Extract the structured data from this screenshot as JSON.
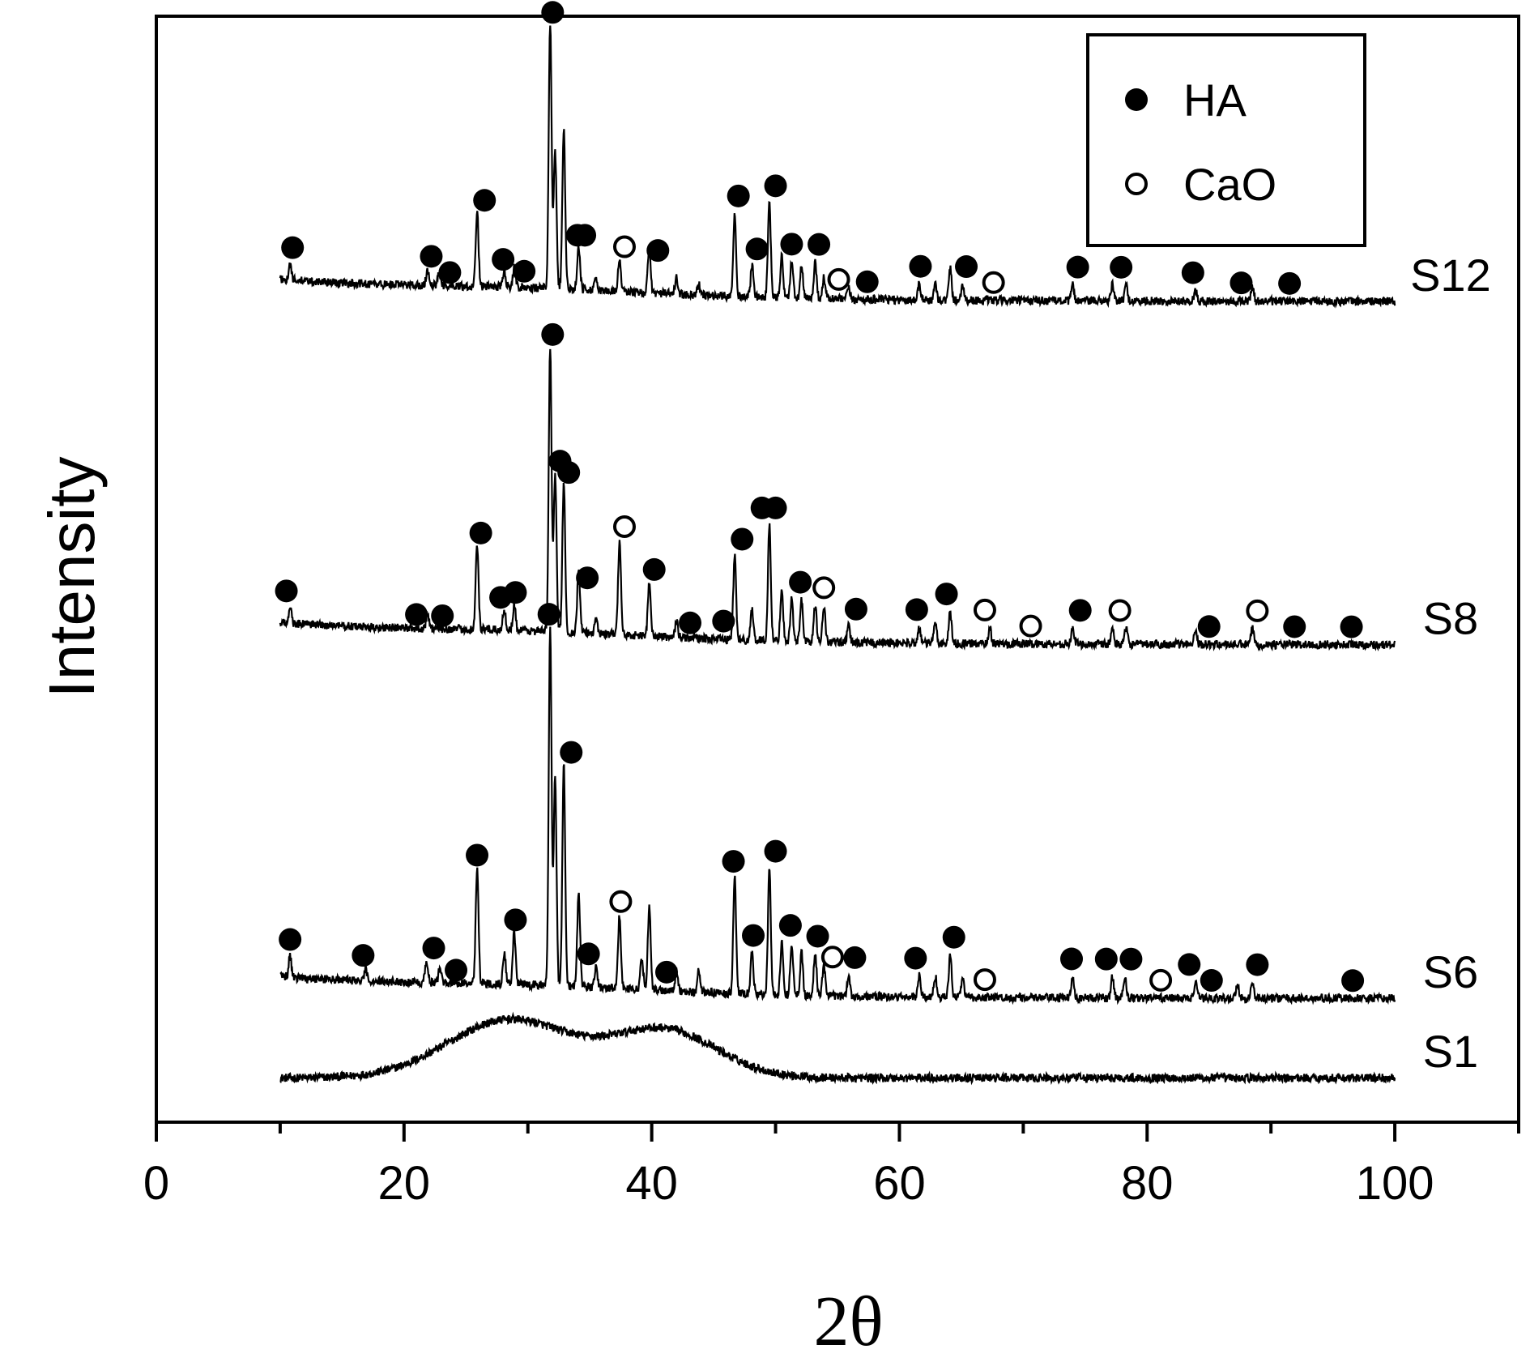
{
  "chart_data": {
    "type": "line",
    "xlabel": "2θ",
    "ylabel": "Intensity",
    "xlim": [
      0,
      110
    ],
    "xticks": [
      0,
      20,
      40,
      60,
      80,
      100
    ],
    "x_tick_labels": [
      "0",
      "20",
      "40",
      "60",
      "80",
      "100"
    ],
    "y_ticks_shown": false,
    "x_range_measured": [
      10,
      100
    ],
    "legend_position": "top-right",
    "legend": [
      {
        "label": "HA",
        "marker": "filled-circle"
      },
      {
        "label": "CaO",
        "marker": "open-circle"
      }
    ],
    "colors": {
      "line": "#000000",
      "background": "#ffffff"
    },
    "series": [
      {
        "name": "S1",
        "baseline": 0.0,
        "peaks": [],
        "humps": [
          {
            "x": 28.5,
            "height": 0.055,
            "width": 7
          },
          {
            "x": 41.0,
            "height": 0.045,
            "width": 6
          }
        ],
        "HA_markers": [],
        "CaO_markers": []
      },
      {
        "name": "S6",
        "baseline": 0.075,
        "peaks": [
          {
            "x": 10.8,
            "h": 0.02
          },
          {
            "x": 16.9,
            "h": 0.01
          },
          {
            "x": 21.8,
            "h": 0.02
          },
          {
            "x": 22.9,
            "h": 0.015
          },
          {
            "x": 25.9,
            "h": 0.11
          },
          {
            "x": 28.1,
            "h": 0.03
          },
          {
            "x": 28.9,
            "h": 0.05
          },
          {
            "x": 31.8,
            "h": 0.34
          },
          {
            "x": 32.2,
            "h": 0.2
          },
          {
            "x": 32.9,
            "h": 0.21
          },
          {
            "x": 34.1,
            "h": 0.09
          },
          {
            "x": 35.5,
            "h": 0.02
          },
          {
            "x": 37.4,
            "h": 0.07
          },
          {
            "x": 39.2,
            "h": 0.03
          },
          {
            "x": 39.8,
            "h": 0.08
          },
          {
            "x": 42.0,
            "h": 0.02
          },
          {
            "x": 43.8,
            "h": 0.02
          },
          {
            "x": 46.7,
            "h": 0.11
          },
          {
            "x": 48.1,
            "h": 0.04
          },
          {
            "x": 49.5,
            "h": 0.12
          },
          {
            "x": 50.5,
            "h": 0.05
          },
          {
            "x": 51.3,
            "h": 0.05
          },
          {
            "x": 52.1,
            "h": 0.04
          },
          {
            "x": 53.2,
            "h": 0.04
          },
          {
            "x": 53.9,
            "h": 0.03
          },
          {
            "x": 55.9,
            "h": 0.02
          },
          {
            "x": 61.6,
            "h": 0.02
          },
          {
            "x": 62.9,
            "h": 0.02
          },
          {
            "x": 64.1,
            "h": 0.04
          },
          {
            "x": 65.1,
            "h": 0.02
          },
          {
            "x": 74.0,
            "h": 0.02
          },
          {
            "x": 77.2,
            "h": 0.02
          },
          {
            "x": 78.2,
            "h": 0.02
          },
          {
            "x": 83.9,
            "h": 0.015
          },
          {
            "x": 87.3,
            "h": 0.015
          },
          {
            "x": 88.5,
            "h": 0.015
          }
        ],
        "HA_markers": [
          10.8,
          16.7,
          22.4,
          24.2,
          25.9,
          29.0,
          31.7,
          33.5,
          34.9,
          41.2,
          46.6,
          48.2,
          50.0,
          51.2,
          53.4,
          56.4,
          61.3,
          64.4,
          73.9,
          76.7,
          78.7,
          83.4,
          85.2,
          88.9,
          96.6
        ],
        "CaO_markers": [
          37.5,
          54.6,
          66.9,
          81.1
        ]
      },
      {
        "name": "S8",
        "baseline": 0.41,
        "peaks": [
          {
            "x": 10.8,
            "h": 0.015
          },
          {
            "x": 21.9,
            "h": 0.015
          },
          {
            "x": 25.9,
            "h": 0.08
          },
          {
            "x": 28.1,
            "h": 0.02
          },
          {
            "x": 28.9,
            "h": 0.025
          },
          {
            "x": 31.8,
            "h": 0.27
          },
          {
            "x": 32.2,
            "h": 0.15
          },
          {
            "x": 32.9,
            "h": 0.14
          },
          {
            "x": 34.1,
            "h": 0.06
          },
          {
            "x": 35.5,
            "h": 0.015
          },
          {
            "x": 37.4,
            "h": 0.09
          },
          {
            "x": 39.8,
            "h": 0.05
          },
          {
            "x": 42.0,
            "h": 0.015
          },
          {
            "x": 46.7,
            "h": 0.08
          },
          {
            "x": 48.1,
            "h": 0.03
          },
          {
            "x": 49.5,
            "h": 0.11
          },
          {
            "x": 50.5,
            "h": 0.05
          },
          {
            "x": 51.3,
            "h": 0.04
          },
          {
            "x": 52.1,
            "h": 0.04
          },
          {
            "x": 53.2,
            "h": 0.035
          },
          {
            "x": 53.9,
            "h": 0.035
          },
          {
            "x": 55.9,
            "h": 0.015
          },
          {
            "x": 61.6,
            "h": 0.015
          },
          {
            "x": 62.9,
            "h": 0.02
          },
          {
            "x": 64.1,
            "h": 0.03
          },
          {
            "x": 67.3,
            "h": 0.015
          },
          {
            "x": 74.0,
            "h": 0.015
          },
          {
            "x": 77.2,
            "h": 0.015
          },
          {
            "x": 78.3,
            "h": 0.015
          },
          {
            "x": 83.9,
            "h": 0.015
          },
          {
            "x": 88.5,
            "h": 0.015
          }
        ],
        "HA_markers": [
          10.5,
          21.0,
          23.1,
          26.2,
          27.8,
          29.0,
          32.0,
          33.3,
          32.6,
          34.8,
          40.2,
          43.1,
          45.8,
          47.3,
          48.9,
          50.0,
          52.0,
          56.5,
          61.4,
          63.8,
          74.6,
          85.0,
          91.9,
          96.5
        ],
        "CaO_markers": [
          37.8,
          53.9,
          66.9,
          70.6,
          77.8,
          88.9
        ]
      },
      {
        "name": "S12",
        "baseline": 0.735,
        "peaks": [
          {
            "x": 10.8,
            "h": 0.015
          },
          {
            "x": 21.9,
            "h": 0.015
          },
          {
            "x": 22.8,
            "h": 0.01
          },
          {
            "x": 25.9,
            "h": 0.07
          },
          {
            "x": 28.1,
            "h": 0.015
          },
          {
            "x": 28.9,
            "h": 0.02
          },
          {
            "x": 31.8,
            "h": 0.25
          },
          {
            "x": 32.2,
            "h": 0.13
          },
          {
            "x": 32.9,
            "h": 0.15
          },
          {
            "x": 34.1,
            "h": 0.04
          },
          {
            "x": 35.5,
            "h": 0.01
          },
          {
            "x": 37.4,
            "h": 0.03
          },
          {
            "x": 39.8,
            "h": 0.04
          },
          {
            "x": 42.0,
            "h": 0.015
          },
          {
            "x": 43.8,
            "h": 0.01
          },
          {
            "x": 46.7,
            "h": 0.08
          },
          {
            "x": 48.1,
            "h": 0.03
          },
          {
            "x": 49.5,
            "h": 0.09
          },
          {
            "x": 50.5,
            "h": 0.04
          },
          {
            "x": 51.3,
            "h": 0.035
          },
          {
            "x": 52.1,
            "h": 0.03
          },
          {
            "x": 53.2,
            "h": 0.035
          },
          {
            "x": 53.9,
            "h": 0.02
          },
          {
            "x": 55.9,
            "h": 0.01
          },
          {
            "x": 61.6,
            "h": 0.015
          },
          {
            "x": 62.9,
            "h": 0.015
          },
          {
            "x": 64.1,
            "h": 0.03
          },
          {
            "x": 65.1,
            "h": 0.015
          },
          {
            "x": 74.0,
            "h": 0.015
          },
          {
            "x": 77.2,
            "h": 0.015
          },
          {
            "x": 78.3,
            "h": 0.015
          },
          {
            "x": 83.9,
            "h": 0.01
          },
          {
            "x": 88.5,
            "h": 0.015
          }
        ],
        "HA_markers": [
          11.0,
          22.2,
          23.7,
          26.5,
          28.0,
          29.7,
          32.0,
          34.0,
          34.6,
          40.5,
          47.0,
          48.5,
          50.0,
          51.3,
          53.5,
          57.4,
          61.7,
          65.4,
          74.4,
          77.9,
          83.7,
          87.6,
          91.5
        ],
        "CaO_markers": [
          37.8,
          55.1,
          67.6
        ]
      }
    ]
  }
}
